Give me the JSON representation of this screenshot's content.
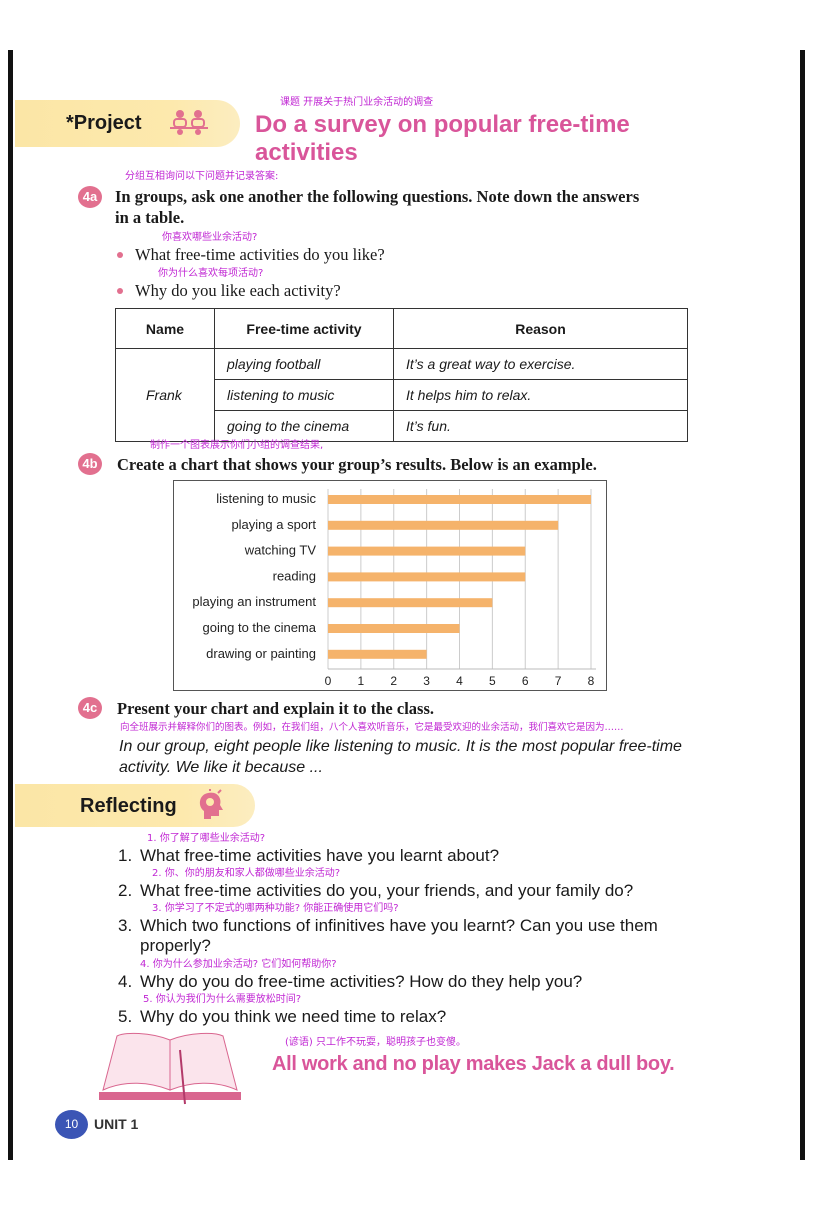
{
  "project": {
    "label": "*Project",
    "icon": "group-meeting-icon",
    "title_note": "课题 开展关于热门业余活动的调查",
    "title_line1": "Do a survey on popular free-time",
    "title_line2": "activities"
  },
  "task_4a": {
    "badge": "4a",
    "note": "分组互相询问以下问题并记录答案:",
    "text_line1": "In groups, ask one another the following questions. Note down the answers",
    "text_line2": "in a table.",
    "bullets": [
      {
        "note": "你喜欢哪些业余活动?",
        "text": "What free-time activities do you like?"
      },
      {
        "note": "你为什么喜欢每项活动?",
        "text": "Why do you like each activity?"
      }
    ]
  },
  "table": {
    "headers": [
      "Name",
      "Free-time activity",
      "Reason"
    ],
    "name": "Frank",
    "rows": [
      {
        "activity": "playing football",
        "reason": "It’s a great way to exercise."
      },
      {
        "activity": "listening to music",
        "reason": "It helps him to relax."
      },
      {
        "activity": "going to the cinema",
        "reason": "It’s fun."
      }
    ]
  },
  "task_4b": {
    "badge": "4b",
    "note": "制作一个图表展示你们小组的调查结果,",
    "text": "Create a chart that shows your group’s results. Below is an example."
  },
  "chart_data": {
    "type": "bar",
    "orientation": "horizontal",
    "categories": [
      "listening to music",
      "playing a sport",
      "watching TV",
      "reading",
      "playing an instrument",
      "going to the cinema",
      "drawing or painting"
    ],
    "values": [
      8,
      7,
      6,
      6,
      5,
      4,
      3
    ],
    "xlim": [
      0,
      8
    ],
    "xticks": [
      "0",
      "1",
      "2",
      "3",
      "4",
      "5",
      "6",
      "7",
      "8"
    ],
    "grid": true,
    "bar_color": "#f5b36b"
  },
  "task_4c": {
    "badge": "4c",
    "text": "Present your chart and explain it to the class.",
    "note": "向全班展示并解释你们的图表。例如，在我们组，八个人喜欢听音乐，它是最受欢迎的业余活动，我们喜欢它是因为……",
    "example_line1": "In our group, eight people like listening to music. It is the most popular free-time",
    "example_line2": "activity. We like it because ..."
  },
  "reflecting": {
    "label": "Reflecting",
    "icon": "head-lightbulb-icon",
    "questions": [
      {
        "num": "1.",
        "note": "1. 你了解了哪些业余活动?",
        "text": "What free-time activities have you learnt about?"
      },
      {
        "num": "2.",
        "note": "2. 你、你的朋友和家人都做哪些业余活动?",
        "text": "What free-time activities do you, your friends, and your family do?"
      },
      {
        "num": "3.",
        "note": "3. 你学习了不定式的哪两种功能? 你能正确使用它们吗?",
        "text": "Which two functions of infinitives have you learnt? Can you use them",
        "text2": "properly?"
      },
      {
        "num": "4.",
        "note": "4. 你为什么参加业余活动? 它们如何帮助你?",
        "text": "Why do you do free-time activities? How do they help you?"
      },
      {
        "num": "5.",
        "note": "5. 你认为我们为什么需要放松时间?",
        "text": "Why do you think we need time to relax?"
      }
    ]
  },
  "proverb": {
    "icon": "open-book-icon",
    "note": "(谚语) 只工作不玩耍，聪明孩子也变傻。",
    "text": "All work and no play makes Jack a dull boy."
  },
  "footer": {
    "page": "10",
    "unit": "UNIT 1"
  },
  "colors": {
    "pink_title": "#d9559a",
    "annotation": "#c026d3",
    "banner": "#fde9ad",
    "badge": "#e2708f",
    "page_badge": "#3b55b5"
  }
}
